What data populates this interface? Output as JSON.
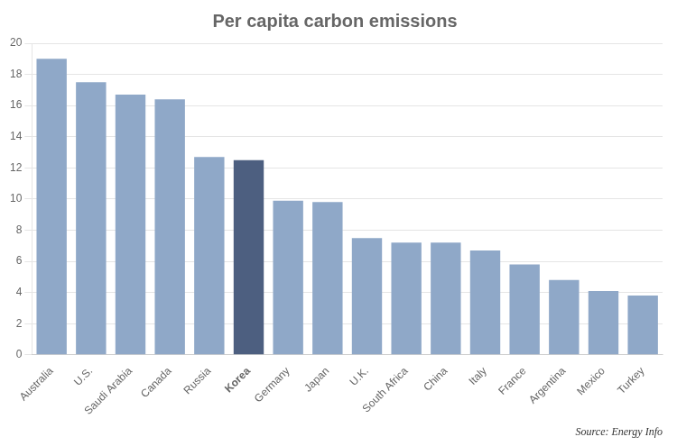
{
  "chart_data": {
    "type": "bar",
    "title": "Per capita carbon emissions",
    "categories": [
      "Australia",
      "U.S.",
      "Saudi Arabia",
      "Canada",
      "Russia",
      "Korea",
      "Germany",
      "Japan",
      "U.K.",
      "South Africa",
      "China",
      "Italy",
      "France",
      "Argentina",
      "Mexico",
      "Turkey"
    ],
    "values": [
      19.0,
      17.5,
      16.7,
      16.4,
      12.7,
      12.5,
      9.9,
      9.8,
      7.5,
      7.2,
      7.2,
      6.7,
      5.8,
      4.8,
      4.1,
      3.8
    ],
    "colors": [
      "#8fa8c8",
      "#8fa8c8",
      "#8fa8c8",
      "#8fa8c8",
      "#8fa8c8",
      "#4d5f80",
      "#8fa8c8",
      "#8fa8c8",
      "#8fa8c8",
      "#8fa8c8",
      "#8fa8c8",
      "#8fa8c8",
      "#8fa8c8",
      "#8fa8c8",
      "#8fa8c8",
      "#8fa8c8"
    ],
    "ylim": [
      0,
      20
    ],
    "yticks": [
      0,
      2,
      4,
      6,
      8,
      10,
      12,
      14,
      16,
      18,
      20
    ],
    "grid": true,
    "annotations": [
      "Source: Energy Info"
    ]
  }
}
